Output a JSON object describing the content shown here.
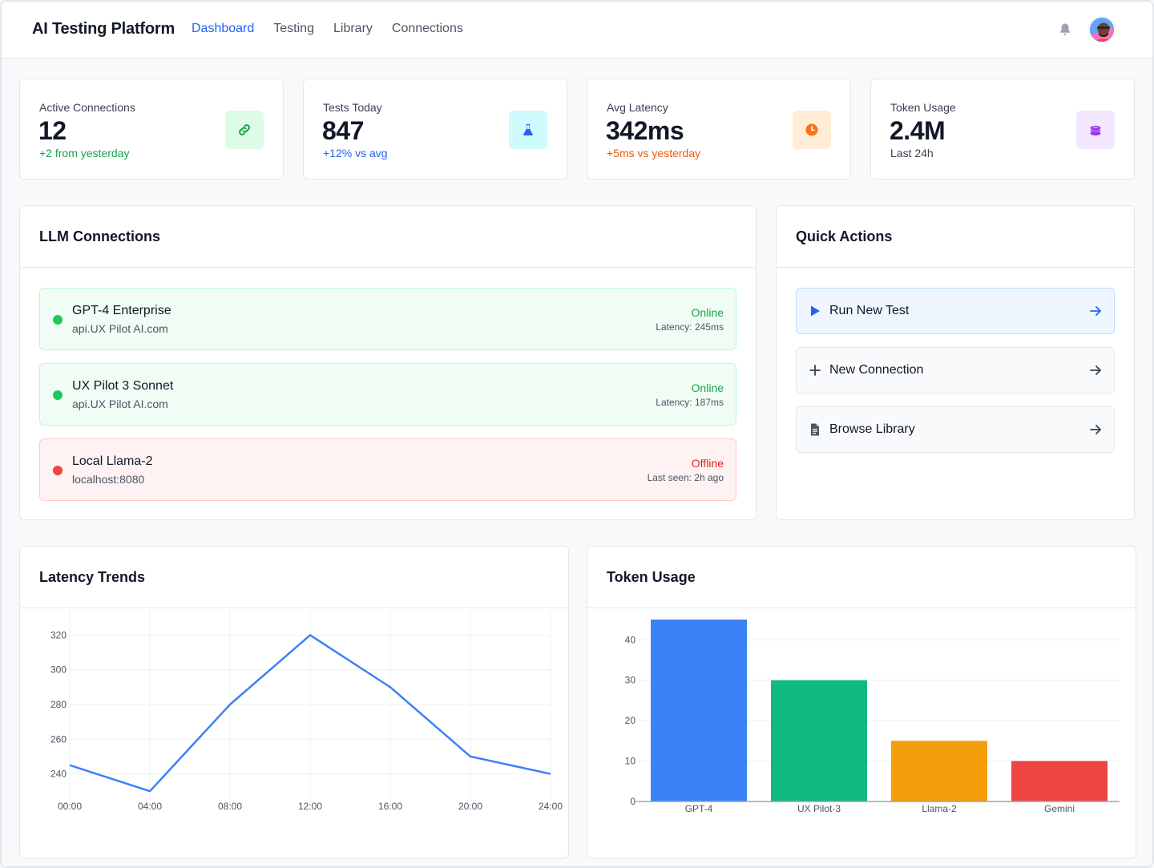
{
  "header": {
    "brand": "AI Testing Platform",
    "nav": [
      "Dashboard",
      "Testing",
      "Library",
      "Connections"
    ],
    "active_nav": "Dashboard"
  },
  "stats": [
    {
      "label": "Active Connections",
      "value": "12",
      "sub": "+2 from yesterday",
      "sub_color": "#16a34a",
      "icon": "link-icon",
      "icon_bg": "#dcfce7",
      "icon_color": "#16a34a"
    },
    {
      "label": "Tests Today",
      "value": "847",
      "sub": "+12% vs avg",
      "sub_color": "#2563eb",
      "icon": "flask-icon",
      "icon_bg": "#cffafe",
      "icon_color": "#2563eb"
    },
    {
      "label": "Avg Latency",
      "value": "342ms",
      "sub": "+5ms vs yesterday",
      "sub_color": "#ea580c",
      "icon": "clock-icon",
      "icon_bg": "#ffedd5",
      "icon_color": "#f97316"
    },
    {
      "label": "Token Usage",
      "value": "2.4M",
      "sub": "Last 24h",
      "sub_color": "#374151",
      "icon": "coins-icon",
      "icon_bg": "#f3e8ff",
      "icon_color": "#9333ea"
    }
  ],
  "llm_connections": {
    "title": "LLM Connections",
    "items": [
      {
        "name": "GPT-4 Enterprise",
        "host": "api.UX Pilot AI.com",
        "status": "Online",
        "detail": "Latency: 245ms",
        "state": "online"
      },
      {
        "name": "UX Pilot 3 Sonnet",
        "host": "api.UX Pilot AI.com",
        "status": "Online",
        "detail": "Latency: 187ms",
        "state": "online"
      },
      {
        "name": "Local Llama-2",
        "host": "localhost:8080",
        "status": "Offline",
        "detail": "Last seen: 2h ago",
        "state": "offline"
      }
    ]
  },
  "quick_actions": {
    "title": "Quick Actions",
    "items": [
      {
        "label": "Run New Test",
        "icon": "play-icon"
      },
      {
        "label": "New Connection",
        "icon": "plus-icon"
      },
      {
        "label": "Browse Library",
        "icon": "document-icon"
      }
    ]
  },
  "latency_panel": {
    "title": "Latency Trends"
  },
  "token_panel": {
    "title": "Token Usage"
  },
  "colors": {
    "accent": "#2563eb",
    "online": "#22c55e",
    "offline": "#ef4444",
    "online_text": "#16a34a",
    "offline_text": "#dc2626"
  },
  "chart_data": [
    {
      "type": "line",
      "title": "Latency Trends",
      "categories": [
        "00:00",
        "04:00",
        "08:00",
        "12:00",
        "16:00",
        "20:00",
        "24:00"
      ],
      "values": [
        245,
        230,
        280,
        320,
        290,
        250,
        240
      ],
      "yticks": [
        240,
        260,
        280,
        300,
        320
      ],
      "ylim": [
        225,
        335
      ],
      "color": "#3b82f6",
      "grid": true
    },
    {
      "type": "bar",
      "title": "Token Usage",
      "categories": [
        "GPT-4",
        "UX Pilot-3",
        "Llama-2",
        "Gemini"
      ],
      "values": [
        45,
        30,
        15,
        10
      ],
      "colors": [
        "#3b82f6",
        "#10b981",
        "#f59e0b",
        "#ef4444"
      ],
      "yticks": [
        0,
        10,
        20,
        30,
        40
      ],
      "ylim": [
        0,
        46
      ],
      "grid": true
    }
  ]
}
